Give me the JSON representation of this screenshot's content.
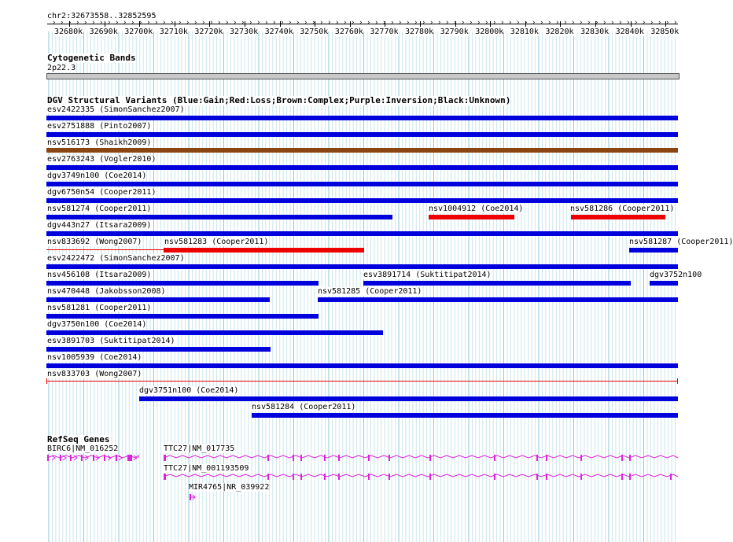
{
  "ruler": {
    "position_label": "chr2:32673558..32852595",
    "tick_labels": [
      "32680k",
      "32690k",
      "32700k",
      "32710k",
      "32720k",
      "32730k",
      "32740k",
      "32750k",
      "32760k",
      "32770k",
      "32780k",
      "32790k",
      "32800k",
      "32810k",
      "32820k",
      "32830k",
      "32840k",
      "32850k"
    ]
  },
  "cytoband": {
    "title": "Cytogenetic Bands",
    "band": "2p22.3"
  },
  "dgv": {
    "title": "DGV Structural Variants (Blue:Gain;Red:Loss;Brown:Complex;Purple:Inversion;Black:Unknown)",
    "colors": {
      "gain": "#0000dd",
      "loss": "#ee0000",
      "complex": "#8b4513"
    },
    "variants": [
      {
        "label": "esv2422335 (SimonSanchez2007)",
        "type": "gain"
      },
      {
        "label": "esv2751888 (Pinto2007)",
        "type": "gain"
      },
      {
        "label": "nsv516173 (Shaikh2009)",
        "type": "complex"
      },
      {
        "label": "esv2763243 (Vogler2010)",
        "type": "gain"
      },
      {
        "label": "dgv3749n100 (Coe2014)",
        "type": "gain"
      },
      {
        "label": "dgv6750n54 (Cooper2011)",
        "type": "gain"
      },
      {
        "label": "nsv581274 (Cooper2011)",
        "type": "gain"
      },
      {
        "label": "nsv1004912 (Coe2014)",
        "type": "loss"
      },
      {
        "label": "nsv581286 (Cooper2011)",
        "type": "loss"
      },
      {
        "label": "dgv443n27 (Itsara2009)",
        "type": "gain"
      },
      {
        "label": "nsv833692 (Wong2007)",
        "type": "loss"
      },
      {
        "label": "nsv581283 (Cooper2011)",
        "type": "loss"
      },
      {
        "label": "nsv581287 (Cooper2011)",
        "type": "gain"
      },
      {
        "label": "esv2422472 (SimonSanchez2007)",
        "type": "gain"
      },
      {
        "label": "nsv456108 (Itsara2009)",
        "type": "gain"
      },
      {
        "label": "esv3891714 (Suktitipat2014)",
        "type": "gain"
      },
      {
        "label": "dgv3752n100",
        "type": "gain"
      },
      {
        "label": "nsv470448 (Jakobsson2008)",
        "type": "gain"
      },
      {
        "label": "nsv581285 (Cooper2011)",
        "type": "gain"
      },
      {
        "label": "nsv581281 (Cooper2011)",
        "type": "gain"
      },
      {
        "label": "dgv3750n100 (Coe2014)",
        "type": "gain"
      },
      {
        "label": "esv3891703 (Suktitipat2014)",
        "type": "gain"
      },
      {
        "label": "nsv1005939 (Coe2014)",
        "type": "gain"
      },
      {
        "label": "nsv833703 (Wong2007)",
        "type": "loss"
      },
      {
        "label": "dgv3751n100 (Coe2014)",
        "type": "gain"
      },
      {
        "label": "nsv581284 (Cooper2011)",
        "type": "gain"
      }
    ]
  },
  "refseq": {
    "title": "RefSeq Genes",
    "color": "#dd22dd",
    "genes": [
      {
        "label": "BIRC6|NM_016252"
      },
      {
        "label": "TTC27|NM_017735"
      },
      {
        "label": "TTC27|NM_001193509"
      },
      {
        "label": "MIR4765|NR_039922"
      }
    ]
  }
}
